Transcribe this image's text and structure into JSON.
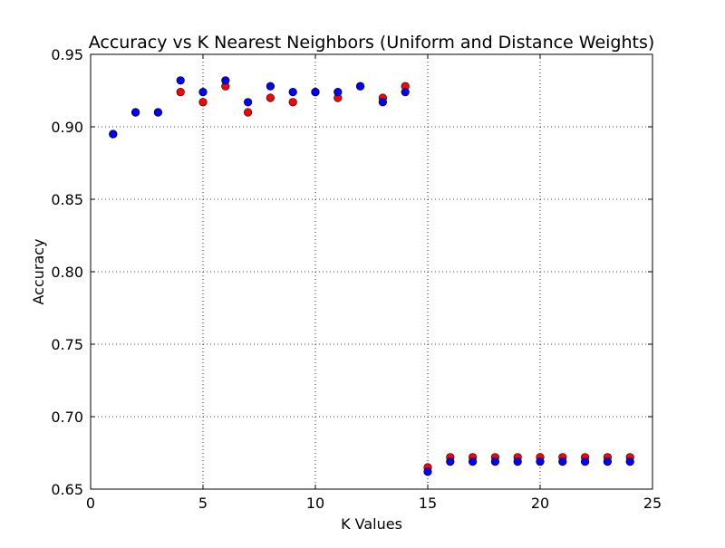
{
  "chart_data": {
    "type": "scatter",
    "title": "Accuracy vs K Nearest Neighbors (Uniform and Distance Weights)",
    "xlabel": "K Values",
    "ylabel": "Accuracy",
    "xlim": [
      0,
      25
    ],
    "ylim": [
      0.65,
      0.95
    ],
    "xticks": [
      "0",
      "5",
      "10",
      "15",
      "20",
      "25"
    ],
    "yticks": [
      "0.65",
      "0.70",
      "0.75",
      "0.80",
      "0.85",
      "0.90",
      "0.95"
    ],
    "grid": true,
    "legend": "none",
    "x": [
      1,
      2,
      3,
      4,
      5,
      6,
      7,
      8,
      9,
      10,
      11,
      12,
      13,
      14,
      15,
      16,
      17,
      18,
      19,
      20,
      21,
      22,
      23,
      24
    ],
    "series": [
      {
        "color": "#ff0000",
        "values": [
          0.895,
          0.91,
          0.91,
          0.924,
          0.917,
          0.928,
          0.91,
          0.92,
          0.917,
          0.924,
          0.92,
          0.928,
          0.92,
          0.928,
          0.665,
          0.672,
          0.672,
          0.672,
          0.672,
          0.672,
          0.672,
          0.672,
          0.672,
          0.672
        ]
      },
      {
        "color": "#0000ff",
        "values": [
          0.895,
          0.91,
          0.91,
          0.932,
          0.924,
          0.932,
          0.917,
          0.928,
          0.924,
          0.924,
          0.924,
          0.928,
          0.917,
          0.924,
          0.662,
          0.669,
          0.669,
          0.669,
          0.669,
          0.669,
          0.669,
          0.669,
          0.669,
          0.669
        ]
      }
    ]
  }
}
